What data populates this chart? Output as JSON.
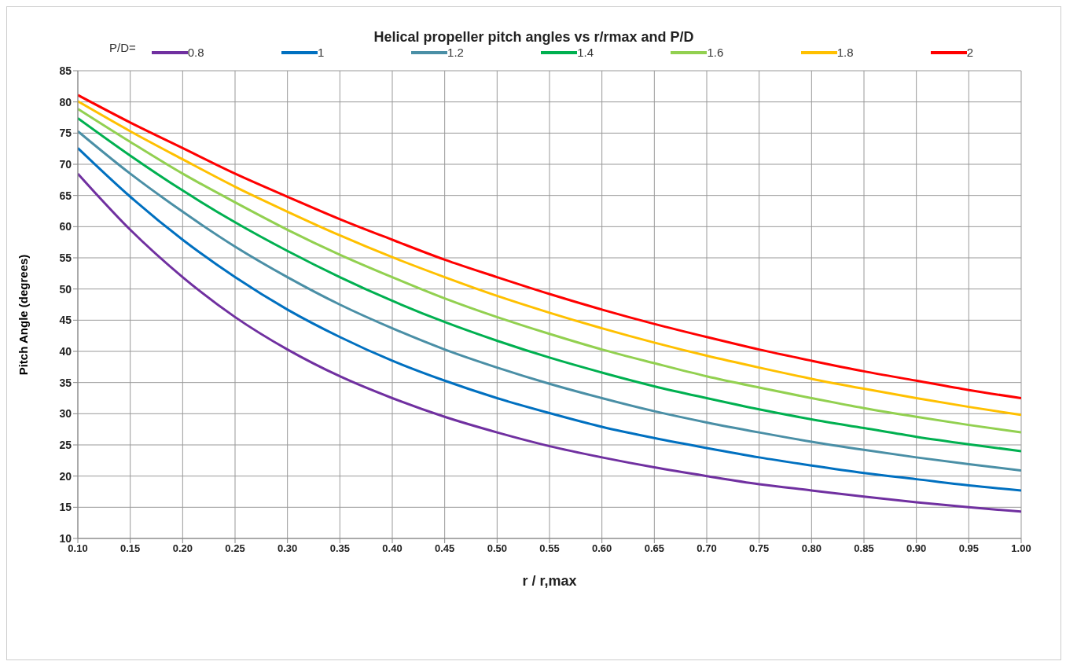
{
  "chart_data": {
    "type": "line",
    "title": "Helical  propeller pitch angles vs r/rmax and P/D",
    "xlabel": "r / r,max",
    "ylabel": "Pitch Angle (degrees)",
    "legend_title": "P/D=",
    "legend": "top",
    "grid": true,
    "marker": "none",
    "line_style": "solid",
    "x": [
      0.1,
      0.15,
      0.2,
      0.25,
      0.3,
      0.35,
      0.4,
      0.45,
      0.5,
      0.55,
      0.6,
      0.65,
      0.7,
      0.75,
      0.8,
      0.85,
      0.9,
      0.95,
      1.0
    ],
    "series": [
      {
        "name": "0.8",
        "color": "#7030a0",
        "values": [
          68.5,
          59.5,
          51.9,
          45.5,
          40.3,
          36.0,
          32.5,
          29.5,
          27.0,
          24.8,
          23.0,
          21.4,
          20.0,
          18.7,
          17.7,
          16.7,
          15.8,
          15.0,
          14.3
        ]
      },
      {
        "name": "1",
        "color": "#0070c0",
        "values": [
          72.6,
          64.8,
          57.9,
          51.9,
          46.7,
          42.3,
          38.5,
          35.3,
          32.5,
          30.1,
          27.9,
          26.1,
          24.5,
          23.0,
          21.7,
          20.5,
          19.5,
          18.5,
          17.7
        ]
      },
      {
        "name": "1.2",
        "color": "#4a8fa6",
        "values": [
          75.3,
          68.5,
          62.4,
          56.8,
          51.9,
          47.5,
          43.7,
          40.3,
          37.4,
          34.8,
          32.5,
          30.4,
          28.6,
          27.0,
          25.5,
          24.2,
          23.0,
          21.9,
          20.9
        ]
      },
      {
        "name": "1.4",
        "color": "#00b050",
        "values": [
          77.4,
          71.4,
          65.8,
          60.7,
          56.1,
          51.9,
          48.1,
          44.7,
          41.7,
          39.0,
          36.6,
          34.4,
          32.5,
          30.7,
          29.1,
          27.7,
          26.3,
          25.1,
          24.0
        ]
      },
      {
        "name": "1.6",
        "color": "#92d050",
        "values": [
          78.9,
          73.6,
          68.5,
          63.9,
          59.5,
          55.5,
          51.9,
          48.5,
          45.5,
          42.8,
          40.3,
          38.1,
          36.0,
          34.2,
          32.5,
          30.9,
          29.5,
          28.2,
          27.0
        ]
      },
      {
        "name": "1.8",
        "color": "#ffc000",
        "values": [
          80.1,
          75.3,
          70.8,
          66.4,
          62.4,
          58.6,
          55.1,
          51.9,
          48.9,
          46.2,
          43.7,
          41.4,
          39.3,
          37.4,
          35.6,
          34.0,
          32.5,
          31.1,
          29.8
        ]
      },
      {
        "name": "2",
        "color": "#ff0000",
        "values": [
          81.1,
          76.7,
          72.6,
          68.5,
          64.8,
          61.2,
          57.9,
          54.7,
          51.9,
          49.2,
          46.7,
          44.4,
          42.3,
          40.3,
          38.5,
          36.8,
          35.3,
          33.8,
          32.5
        ]
      }
    ],
    "xlim": [
      0.1,
      1.0
    ],
    "xticks": [
      {
        "value": 0.1,
        "label": "0.10"
      },
      {
        "value": 0.15,
        "label": "0.15"
      },
      {
        "value": 0.2,
        "label": "0.20"
      },
      {
        "value": 0.25,
        "label": "0.25"
      },
      {
        "value": 0.3,
        "label": "0.30"
      },
      {
        "value": 0.35,
        "label": "0.35"
      },
      {
        "value": 0.4,
        "label": "0.40"
      },
      {
        "value": 0.45,
        "label": "0.45"
      },
      {
        "value": 0.5,
        "label": "0.50"
      },
      {
        "value": 0.55,
        "label": "0.55"
      },
      {
        "value": 0.6,
        "label": "0.60"
      },
      {
        "value": 0.65,
        "label": "0.65"
      },
      {
        "value": 0.7,
        "label": "0.70"
      },
      {
        "value": 0.75,
        "label": "0.75"
      },
      {
        "value": 0.8,
        "label": "0.80"
      },
      {
        "value": 0.85,
        "label": "0.85"
      },
      {
        "value": 0.9,
        "label": "0.90"
      },
      {
        "value": 0.95,
        "label": "0.95"
      },
      {
        "value": 1.0,
        "label": "1.00"
      }
    ],
    "ylim": [
      10,
      85
    ],
    "yticks": [
      10,
      15,
      20,
      25,
      30,
      35,
      40,
      45,
      50,
      55,
      60,
      65,
      70,
      75,
      80,
      85
    ]
  }
}
